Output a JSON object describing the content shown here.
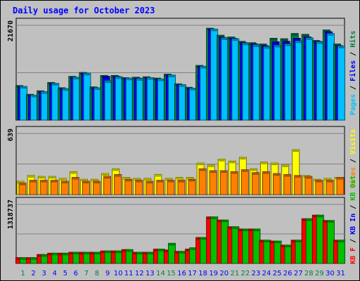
{
  "chart_data": {
    "type": "bar",
    "title": "Daily usage for October 2023",
    "categories": [
      "1",
      "2",
      "3",
      "4",
      "5",
      "6",
      "7",
      "8",
      "9",
      "10",
      "11",
      "12",
      "13",
      "14",
      "15",
      "16",
      "17",
      "18",
      "19",
      "20",
      "21",
      "22",
      "23",
      "24",
      "25",
      "26",
      "27",
      "28",
      "29",
      "30",
      "31"
    ],
    "weekend_days": [
      "1",
      "7",
      "8",
      "14",
      "15",
      "21",
      "22",
      "28",
      "29"
    ],
    "panels": [
      {
        "name": "top",
        "max_label": "21670",
        "ymax": 21670,
        "series": [
          {
            "name": "Hits",
            "color": "#008040",
            "values": [
              7900,
              5900,
              6700,
              8600,
              7400,
              10000,
              10900,
              7600,
              10200,
              10200,
              9700,
              9800,
              9900,
              9600,
              10500,
              8300,
              7500,
              12500,
              21000,
              19400,
              19000,
              18000,
              17700,
              17400,
              18700,
              18600,
              19800,
              19600,
              18200,
              20600,
              17400
            ]
          },
          {
            "name": "Files",
            "color": "#0000ff",
            "values": [
              7700,
              5700,
              6500,
              8400,
              7200,
              9800,
              10700,
              7400,
              10000,
              10000,
              9600,
              9600,
              9700,
              9400,
              10300,
              8100,
              7300,
              12300,
              20800,
              18900,
              18700,
              17700,
              17400,
              17000,
              17900,
              18000,
              18700,
              19000,
              18000,
              20200,
              17000
            ]
          },
          {
            "name": "Pages",
            "color": "#00c0ff",
            "values": [
              7700,
              5700,
              6500,
              8400,
              7200,
              9800,
              10700,
              7400,
              9000,
              9900,
              9600,
              9500,
              9700,
              9400,
              10300,
              8100,
              7300,
              12300,
              20800,
              18800,
              18600,
              17600,
              17200,
              16800,
              17100,
              17400,
              18100,
              18800,
              17900,
              19800,
              16900
            ]
          }
        ],
        "legend": [
          "Pages",
          "/",
          "Files",
          "/",
          "Hits"
        ],
        "legend_colors": [
          "#00c0ff",
          "#000000",
          "#0000ff",
          "#000000",
          "#008040"
        ]
      },
      {
        "name": "middle",
        "max_label": "639",
        "ymax": 639,
        "series": [
          {
            "name": "Visits",
            "color": "#ffff00",
            "values": [
              140,
              200,
              190,
              190,
              170,
              240,
              160,
              160,
              220,
              270,
              180,
              170,
              170,
              210,
              170,
              180,
              180,
              330,
              310,
              370,
              350,
              390,
              270,
              340,
              330,
              310,
              470,
              200,
              160,
              170,
              180
            ]
          },
          {
            "name": "Sites",
            "color": "#ff8000",
            "values": [
              120,
              150,
              150,
              150,
              140,
              180,
              140,
              140,
              190,
              210,
              160,
              150,
              140,
              150,
              150,
              150,
              160,
              270,
              250,
              250,
              240,
              260,
              230,
              240,
              220,
              210,
              200,
              190,
              150,
              150,
              180
            ]
          }
        ],
        "legend": [
          "Sites",
          "/",
          "Visits"
        ],
        "legend_colors": [
          "#ff8000",
          "#000000",
          "#ffff00"
        ]
      },
      {
        "name": "bottom",
        "max_label": "1318737",
        "ymax": 1318737,
        "series": [
          {
            "name": "KB F",
            "color": "#ff0000",
            "values": [
              130000,
              130000,
              200000,
              230000,
              230000,
              250000,
              250000,
              250000,
              280000,
              280000,
              310000,
              250000,
              250000,
              320000,
              300000,
              270000,
              320000,
              580000,
              1040000,
              970000,
              820000,
              770000,
              770000,
              520000,
              500000,
              410000,
              520000,
              1000000,
              1080000,
              960000,
              520000
            ]
          },
          {
            "name": "KB In",
            "color": "#0000ff",
            "values": [
              0,
              0,
              0,
              0,
              0,
              0,
              0,
              0,
              0,
              0,
              0,
              0,
              0,
              0,
              0,
              0,
              0,
              0,
              0,
              0,
              0,
              0,
              0,
              0,
              0,
              0,
              0,
              0,
              0,
              0,
              0
            ]
          },
          {
            "name": "KB Out",
            "color": "#00c000",
            "values": [
              130000,
              130000,
              200000,
              230000,
              230000,
              250000,
              250000,
              250000,
              280000,
              280000,
              310000,
              250000,
              250000,
              320000,
              450000,
              270000,
              350000,
              580000,
              1040000,
              970000,
              820000,
              770000,
              770000,
              520000,
              500000,
              410000,
              520000,
              1000000,
              1080000,
              960000,
              520000
            ]
          }
        ],
        "legend": [
          "KB F",
          "/",
          "KB In",
          "/",
          "KB Out"
        ],
        "legend_colors": [
          "#ff0000",
          "#000000",
          "#0000ff",
          "#000000",
          "#00c000"
        ]
      }
    ],
    "colors": {
      "background": "#c0c0c0",
      "plot_background": "#c0c0c0",
      "title": "#0000ff",
      "day_label": "#0000ff",
      "weekend_label": "#008040"
    }
  }
}
